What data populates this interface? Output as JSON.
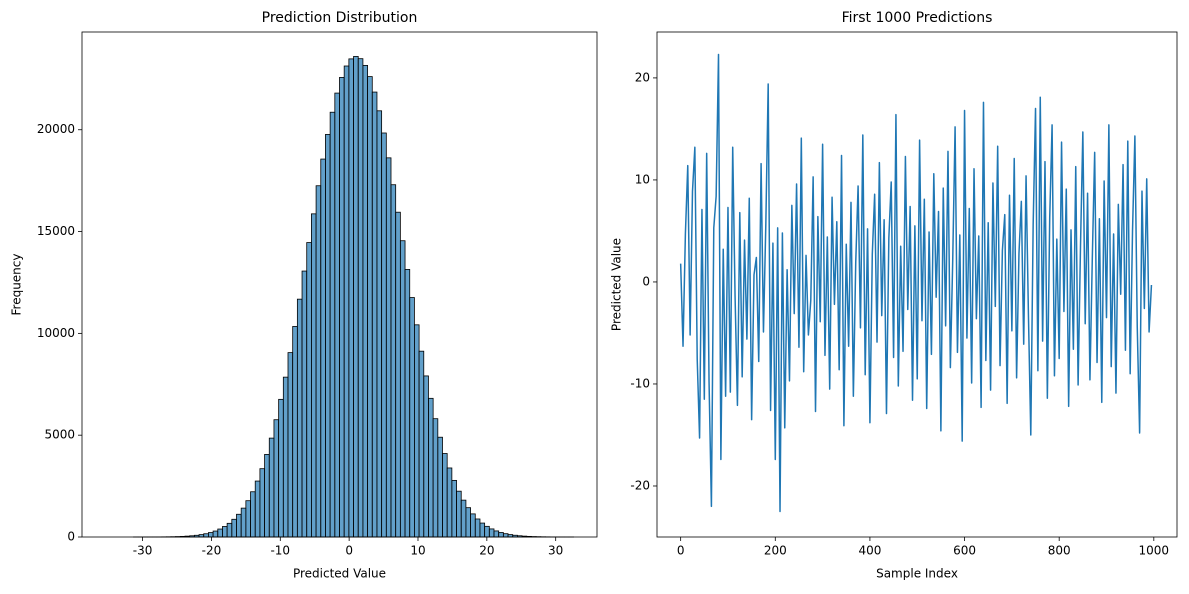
{
  "chart_data": [
    {
      "type": "histogram",
      "title": "Prediction Distribution",
      "x_label": "Predicted Value",
      "y_label": "Frequency",
      "color": "#1f77b4",
      "edge_color": "#000000",
      "bins": [
        -35.4,
        -34.72,
        -34.04,
        -33.36,
        -32.68,
        -32,
        -31.32,
        -30.64,
        -29.96,
        -29.28,
        -28.6,
        -27.92,
        -27.24,
        -26.56,
        -25.88,
        -25.2,
        -24.52,
        -23.84,
        -23.16,
        -22.48,
        -21.8,
        -21.12,
        -20.44,
        -19.76,
        -19.08,
        -18.4,
        -17.72,
        -17.04,
        -16.36,
        -15.68,
        -15,
        -14.32,
        -13.64,
        -12.96,
        -12.28,
        -11.6,
        -10.92,
        -10.24,
        -9.56,
        -8.88,
        -8.2,
        -7.52,
        -6.84,
        -6.16,
        -5.48,
        -4.8,
        -4.12,
        -3.44,
        -2.76,
        -2.08,
        -1.4,
        -0.72,
        -0.04,
        0.64,
        1.32,
        2,
        2.68,
        3.36,
        4.04,
        4.72,
        5.4,
        6.08,
        6.76,
        7.44,
        8.12,
        8.8,
        9.48,
        10.16,
        10.84,
        11.52,
        12.2,
        12.88,
        13.56,
        14.24,
        14.92,
        15.6,
        16.28,
        16.96,
        17.64,
        18.32,
        19,
        19.68,
        20.36,
        21.04,
        21.72,
        22.4,
        23.08,
        23.76,
        24.44,
        25.12,
        25.8,
        26.48,
        27.16,
        27.84,
        28.52,
        29.2,
        29.88,
        30.56,
        31.24,
        31.92,
        32.6
      ],
      "values": [
        0,
        0,
        0,
        0,
        0,
        0,
        1,
        1,
        1,
        2,
        3,
        4,
        7,
        10,
        14,
        21,
        30,
        43,
        60,
        84,
        117,
        160,
        217,
        292,
        391,
        517,
        672,
        870,
        1116,
        1418,
        1783,
        2222,
        2747,
        3355,
        4056,
        4856,
        5760,
        6760,
        7850,
        9055,
        10340,
        11680,
        13060,
        14460,
        15870,
        17250,
        18560,
        19770,
        20860,
        21800,
        22570,
        23130,
        23480,
        23600,
        23490,
        23160,
        22610,
        21850,
        20930,
        19840,
        18620,
        17300,
        15950,
        14550,
        13140,
        11760,
        10420,
        9125,
        7910,
        6810,
        5810,
        4900,
        4100,
        3390,
        2780,
        2250,
        1810,
        1440,
        1135,
        885,
        684,
        524,
        397,
        298,
        221,
        163,
        118,
        86,
        61,
        43,
        30,
        21,
        15,
        10,
        7,
        4,
        3,
        2,
        1,
        1
      ],
      "xlim": [
        -38.8,
        36
      ],
      "ylim": [
        0,
        24800
      ],
      "xticks": [
        -30,
        -20,
        -10,
        0,
        10,
        20,
        30
      ],
      "yticks": [
        0,
        5000,
        10000,
        15000,
        20000
      ]
    },
    {
      "type": "line",
      "title": "First 1000 Predictions",
      "x_label": "Sample Index",
      "y_label": "Predicted Value",
      "color": "#1f77b4",
      "x": [
        0,
        5,
        10,
        15,
        20,
        25,
        30,
        35,
        40,
        45,
        50,
        55,
        60,
        65,
        70,
        75,
        80,
        85,
        90,
        95,
        100,
        105,
        110,
        115,
        120,
        125,
        130,
        135,
        140,
        145,
        150,
        155,
        160,
        165,
        170,
        175,
        180,
        185,
        190,
        195,
        200,
        205,
        210,
        215,
        220,
        225,
        230,
        235,
        240,
        245,
        250,
        255,
        260,
        265,
        270,
        275,
        280,
        285,
        290,
        295,
        300,
        305,
        310,
        315,
        320,
        325,
        330,
        335,
        340,
        345,
        350,
        355,
        360,
        365,
        370,
        375,
        380,
        385,
        390,
        395,
        400,
        405,
        410,
        415,
        420,
        425,
        430,
        435,
        440,
        445,
        450,
        455,
        460,
        465,
        470,
        475,
        480,
        485,
        490,
        495,
        500,
        505,
        510,
        515,
        520,
        525,
        530,
        535,
        540,
        545,
        550,
        555,
        560,
        565,
        570,
        575,
        580,
        585,
        590,
        595,
        600,
        605,
        610,
        615,
        620,
        625,
        630,
        635,
        640,
        645,
        650,
        655,
        660,
        665,
        670,
        675,
        680,
        685,
        690,
        695,
        700,
        705,
        710,
        715,
        720,
        725,
        730,
        735,
        740,
        745,
        750,
        755,
        760,
        765,
        770,
        775,
        780,
        785,
        790,
        795,
        800,
        805,
        810,
        815,
        820,
        825,
        830,
        835,
        840,
        845,
        850,
        855,
        860,
        865,
        870,
        875,
        880,
        885,
        890,
        895,
        900,
        905,
        910,
        915,
        920,
        925,
        930,
        935,
        940,
        945,
        950,
        955,
        960,
        965,
        970,
        975,
        980,
        985,
        990,
        995
      ],
      "values": [
        1.8,
        -6.3,
        4.7,
        11.4,
        -5.2,
        8.9,
        13.2,
        -7.6,
        -15.3,
        7.1,
        -11.5,
        12.6,
        -9.8,
        -22.0,
        5.3,
        8.4,
        22.3,
        -17.4,
        3.2,
        -11.2,
        7.3,
        -10.8,
        13.2,
        -1.4,
        -12.1,
        6.8,
        -9.3,
        4.1,
        -5.6,
        8.2,
        -13.5,
        0.7,
        2.4,
        -7.8,
        11.6,
        -4.9,
        5.7,
        19.4,
        -12.6,
        3.8,
        -17.4,
        5.3,
        -22.5,
        4.8,
        -14.3,
        1.2,
        -9.7,
        7.5,
        -3.1,
        9.6,
        -6.4,
        14.1,
        -8.8,
        2.6,
        -5.2,
        -1.8,
        10.3,
        -12.7,
        6.4,
        -3.9,
        13.5,
        -7.2,
        4.4,
        -10.5,
        8.3,
        -2.2,
        5.9,
        -8.6,
        12.4,
        -14.1,
        3.7,
        -6.3,
        7.8,
        -11.2,
        1.9,
        9.4,
        -4.5,
        14.4,
        -9.1,
        5.2,
        -13.8,
        2.7,
        8.6,
        -5.9,
        11.7,
        -3.3,
        6.1,
        -12.9,
        4.3,
        9.8,
        -7.4,
        16.4,
        -10.2,
        3.5,
        -6.8,
        12.3,
        -2.7,
        7.4,
        -11.6,
        5.5,
        -9.5,
        13.9,
        -3.8,
        8.1,
        -12.4,
        4.9,
        -7.1,
        10.6,
        -1.5,
        6.9,
        -14.6,
        9.2,
        -4.3,
        12.8,
        -8.4,
        2.1,
        15.2,
        -6.9,
        4.6,
        -15.6,
        16.8,
        -5.5,
        7.2,
        -9.9,
        11.1,
        -3.6,
        4.5,
        -12.3,
        17.6,
        -7.7,
        5.8,
        -10.6,
        9.7,
        -2.4,
        13.3,
        -8.2,
        3.1,
        6.6,
        -11.9,
        8.5,
        -4.8,
        12.1,
        -9.4,
        2.8,
        7.9,
        -6.1,
        10.4,
        -3.2,
        -15.0,
        5.6,
        17.0,
        -8.7,
        18.1,
        -5.8,
        11.8,
        -11.4,
        6.3,
        15.4,
        -9.2,
        4.2,
        -7.5,
        13.7,
        -2.9,
        9.1,
        -12.2,
        5.1,
        -6.6,
        11.3,
        -10.1,
        3.4,
        14.7,
        -4.1,
        8.7,
        -9.6,
        2.3,
        12.7,
        -7.9,
        6.2,
        -11.8,
        9.9,
        -3.5,
        15.4,
        -8.3,
        4.7,
        -10.9,
        7.6,
        -1.2,
        11.5,
        -6.7,
        13.8,
        -9.0,
        5.0,
        14.3,
        -4.4,
        -14.8,
        8.9,
        -2.6,
        10.1,
        -4.9,
        -0.3
      ],
      "xlim": [
        -50,
        1049
      ],
      "ylim": [
        -25,
        24.5
      ],
      "xticks": [
        0,
        200,
        400,
        600,
        800,
        1000
      ],
      "yticks": [
        -20,
        -10,
        0,
        10,
        20
      ]
    }
  ]
}
